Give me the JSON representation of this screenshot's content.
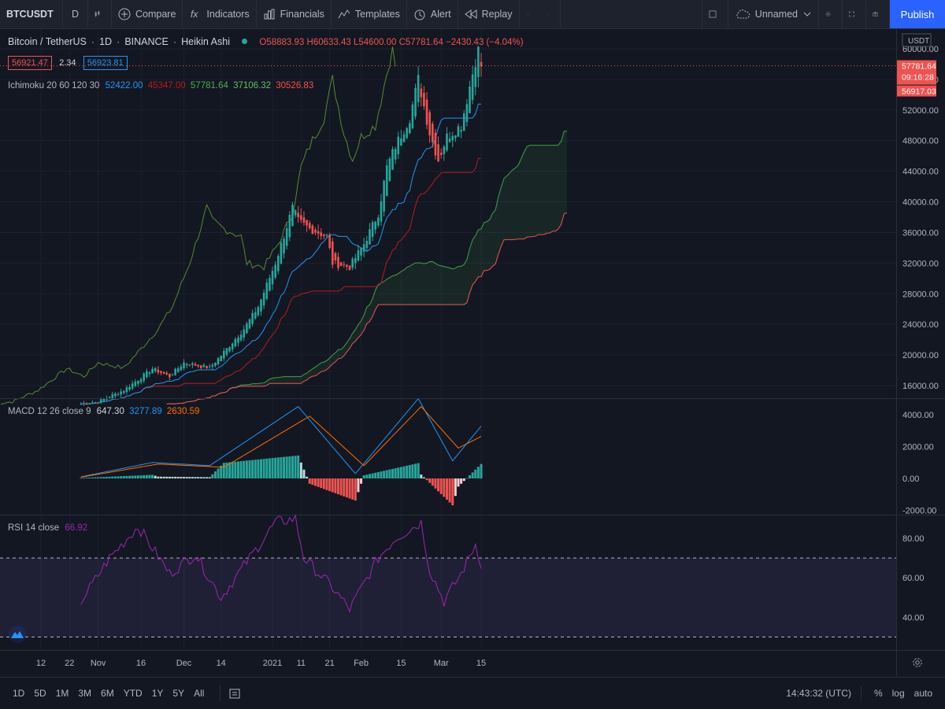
{
  "toolbar": {
    "symbol": "BTCUSDT",
    "interval": "D",
    "compare": "Compare",
    "indicators": "Indicators",
    "financials": "Financials",
    "templates": "Templates",
    "alert": "Alert",
    "replay": "Replay",
    "layout_name": "Unnamed",
    "publish": "Publish"
  },
  "legend": {
    "title": "Bitcoin / TetherUS",
    "interval": "1D",
    "exchange": "BINANCE",
    "chart_style": "Heikin Ashi",
    "open": "O58883.93",
    "high": "H60633.43",
    "low": "L54600.00",
    "close": "C57781.64",
    "change": "−2430.43 (−4.04%)",
    "bid": "56921.47",
    "spread": "2.34",
    "ask": "56923.81",
    "ichimoku_name": "Ichimoku 20 60 120 30",
    "ichimoku_values": [
      "52422.00",
      "45347.00",
      "57781.64",
      "37106.32",
      "30526.83"
    ],
    "macd_name": "MACD 12 26 close 9",
    "macd_values": [
      "647.30",
      "3277.89",
      "2630.59"
    ],
    "rsi_name": "RSI 14 close",
    "rsi_value": "66.92"
  },
  "price_axis": {
    "currency": "USDT",
    "labels": [
      "60000.00",
      "56000.00",
      "52000.00",
      "48000.00",
      "44000.00",
      "40000.00",
      "36000.00",
      "32000.00",
      "28000.00",
      "24000.00",
      "20000.00",
      "16000.00"
    ],
    "last_price": "57781.64",
    "countdown": "09:16:28",
    "ha_close": "56917.03"
  },
  "macd_axis": {
    "labels": [
      "4000.00",
      "2000.00",
      "0.00",
      "-2000.00"
    ]
  },
  "rsi_axis": {
    "labels": [
      "80.00",
      "60.00",
      "40.00"
    ]
  },
  "time_axis": {
    "labels": [
      "12",
      "22",
      "Nov",
      "16",
      "Dec",
      "14",
      "2021",
      "11",
      "21",
      "Feb",
      "15",
      "Mar",
      "15"
    ]
  },
  "bottom": {
    "ranges": [
      "1D",
      "5D",
      "1M",
      "3M",
      "6M",
      "YTD",
      "1Y",
      "5Y",
      "All"
    ],
    "clock": "14:43:32 (UTC)",
    "percent": "%",
    "log": "log",
    "auto": "auto"
  },
  "colors": {
    "up": "#26a69a",
    "down": "#ef5350",
    "tenkan": "#2196f3",
    "kijun": "#b71c1c",
    "chikou": "#4caf50",
    "spanA": "#43a047",
    "spanB": "#ef5350",
    "macd": "#2196f3",
    "signal": "#ff6d00",
    "rsi": "#9c27b0",
    "accent": "#2962ff"
  },
  "chart_data": [
    {
      "type": "candlestick",
      "title": "Bitcoin / TetherUS",
      "x": [
        "12",
        "22",
        "Nov",
        "16",
        "Dec",
        "14",
        "2021",
        "11",
        "21",
        "Feb",
        "15",
        "Mar",
        "15"
      ],
      "ylim": [
        14000,
        62000
      ],
      "x_dates": [
        "2020-10-12",
        "2020-10-22",
        "2020-11-01",
        "2020-11-16",
        "2020-12-01",
        "2020-12-14",
        "2021-01-01",
        "2021-01-11",
        "2021-01-21",
        "2021-02-01",
        "2021-02-15",
        "2021-03-01",
        "2021-03-15"
      ],
      "close_anchor": [
        [
          "2020-10-26",
          13600
        ],
        [
          "2020-11-01",
          13900
        ],
        [
          "2020-11-10",
          15400
        ],
        [
          "2020-11-20",
          18200
        ],
        [
          "2020-11-26",
          17200
        ],
        [
          "2020-12-01",
          19000
        ],
        [
          "2020-12-10",
          18300
        ],
        [
          "2020-12-16",
          20800
        ],
        [
          "2020-12-22",
          23400
        ],
        [
          "2020-12-27",
          26300
        ],
        [
          "2021-01-02",
          32000
        ],
        [
          "2021-01-08",
          39200
        ],
        [
          "2021-01-10",
          37500
        ],
        [
          "2021-01-14",
          36500
        ],
        [
          "2021-01-20",
          35500
        ],
        [
          "2021-01-22",
          32000
        ],
        [
          "2021-01-28",
          31500
        ],
        [
          "2021-02-02",
          34500
        ],
        [
          "2021-02-07",
          38500
        ],
        [
          "2021-02-10",
          44500
        ],
        [
          "2021-02-13",
          47300
        ],
        [
          "2021-02-18",
          51000
        ],
        [
          "2021-02-21",
          56000
        ],
        [
          "2021-02-25",
          49000
        ],
        [
          "2021-02-28",
          45500
        ],
        [
          "2021-03-03",
          48500
        ],
        [
          "2021-03-08",
          50000
        ],
        [
          "2021-03-13",
          58500
        ],
        [
          "2021-03-14",
          59800
        ],
        [
          "2021-03-15",
          57781.64
        ]
      ],
      "ichimoku": {
        "conversion_last": 52422.0,
        "base_last": 45347.0,
        "lagging_last": 57781.64,
        "lead1_last": 37106.32,
        "lead2_last": 30526.83
      }
    },
    {
      "type": "line",
      "title": "MACD 12 26 close 9",
      "ylim": [
        -2400,
        5200
      ],
      "series": [
        {
          "name": "MACD",
          "anchors": [
            [
              "2020-10-26",
              100
            ],
            [
              "2020-11-20",
              1000
            ],
            [
              "2020-12-10",
              800
            ],
            [
              "2021-01-10",
              4500
            ],
            [
              "2021-01-30",
              300
            ],
            [
              "2021-02-21",
              5000
            ],
            [
              "2021-03-05",
              1100
            ],
            [
              "2021-03-15",
              3277.89
            ]
          ]
        },
        {
          "name": "Signal",
          "anchors": [
            [
              "2020-10-26",
              80
            ],
            [
              "2020-11-22",
              900
            ],
            [
              "2020-12-15",
              700
            ],
            [
              "2021-01-14",
              3900
            ],
            [
              "2021-02-02",
              800
            ],
            [
              "2021-02-22",
              4500
            ],
            [
              "2021-03-07",
              1900
            ],
            [
              "2021-03-15",
              2630.59
            ]
          ]
        }
      ],
      "histogram_last": 647.3
    },
    {
      "type": "line",
      "title": "RSI 14 close",
      "ylim": [
        26,
        92
      ],
      "bands": [
        30,
        70
      ],
      "anchors": [
        [
          "2020-10-26",
          48
        ],
        [
          "2020-11-05",
          70
        ],
        [
          "2020-11-15",
          86
        ],
        [
          "2020-11-26",
          62
        ],
        [
          "2020-12-05",
          72
        ],
        [
          "2020-12-14",
          50
        ],
        [
          "2021-01-02",
          88
        ],
        [
          "2021-01-09",
          90
        ],
        [
          "2021-01-12",
          70
        ],
        [
          "2021-01-22",
          55
        ],
        [
          "2021-01-28",
          44
        ],
        [
          "2021-02-07",
          70
        ],
        [
          "2021-02-13",
          80
        ],
        [
          "2021-02-22",
          88
        ],
        [
          "2021-02-25",
          64
        ],
        [
          "2021-03-02",
          48
        ],
        [
          "2021-03-08",
          62
        ],
        [
          "2021-03-13",
          77
        ],
        [
          "2021-03-15",
          66.92
        ]
      ],
      "last": 66.92
    }
  ]
}
